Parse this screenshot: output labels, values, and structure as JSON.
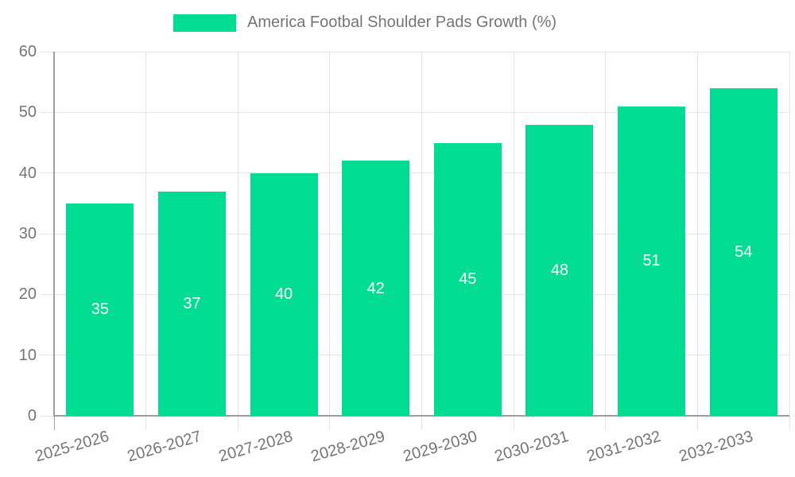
{
  "chart_data": {
    "type": "bar",
    "title": "",
    "categories": [
      "2025-2026",
      "2026-2027",
      "2027-2028",
      "2028-2029",
      "2029-2030",
      "2030-2031",
      "2031-2032",
      "2032-2033"
    ],
    "series": [
      {
        "name": "America Footbal Shoulder Pads Growth (%)",
        "values": [
          35,
          37,
          40,
          42,
          45,
          48,
          51,
          54
        ]
      }
    ],
    "value_labels_shown": true,
    "xlabel": "",
    "ylabel": "",
    "ylim": [
      0,
      60
    ],
    "yticks": [
      0,
      10,
      20,
      30,
      40,
      50,
      60
    ],
    "grid": true,
    "legend_position": "top",
    "x_tick_rotation_deg": -16
  },
  "colors": {
    "background": "#ffffff",
    "bar_fill": "#00DC92",
    "gridline": "#E4E4E4",
    "axis_line": "#9E9E9E",
    "tick_label_text": "#757575",
    "legend_text": "#757575",
    "bar_value_text": "#ffffff"
  }
}
